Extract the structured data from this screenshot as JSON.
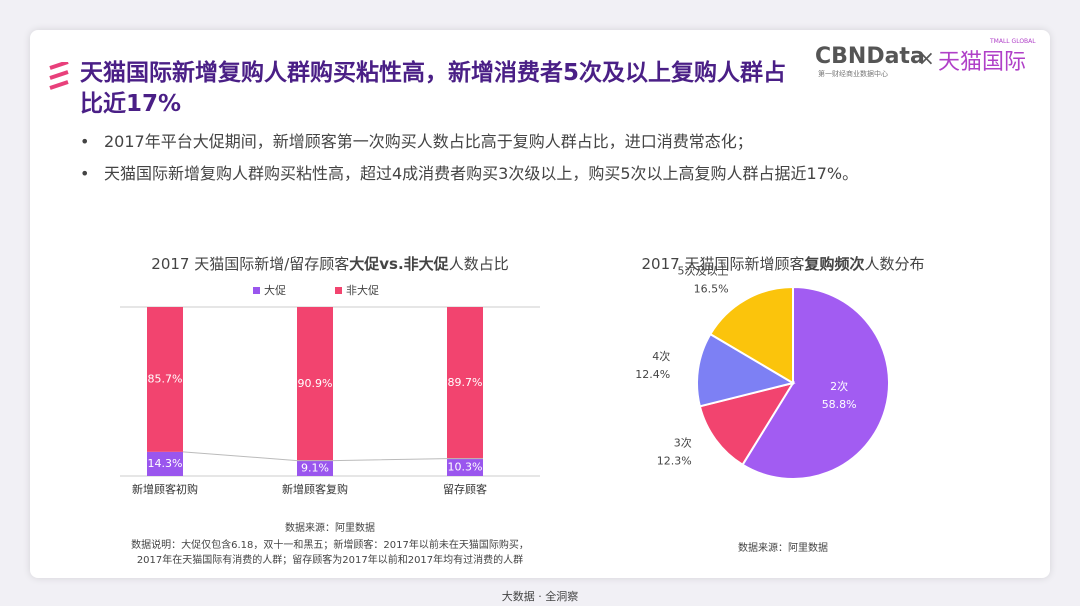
{
  "header": {
    "title": "天猫国际新增复购人群购买粘性高，新增消费者5次及以上复购人群占比近17%",
    "logo": "CBNData",
    "logo_sub": "第一财经商业数据中心",
    "cross": "×",
    "partner": "天猫国际",
    "partner_sub": "TMALL GLOBAL"
  },
  "bullets": [
    "2017年平台大促期间，新增顾客第一次购买人数占比高于复购人群占比，进口消费常态化；",
    "天猫国际新增复购人群购买粘性高，超过4成消费者购买3次级以上，购买5次以上高复购人群占据近17%。"
  ],
  "chart_data": [
    {
      "type": "bar",
      "stacked": true,
      "title": [
        "2017 天猫国际新增/留存顾客",
        "大促vs.非大促",
        "人数占比"
      ],
      "categories": [
        "新增顾客初购",
        "新增顾客复购",
        "留存顾客"
      ],
      "series": [
        {
          "name": "大促",
          "color": "#9a56ee",
          "values": [
            14.3,
            9.1,
            10.3
          ],
          "value_labels": [
            "14.3%",
            "9.1%",
            "10.3%"
          ]
        },
        {
          "name": "非大促",
          "color": "#f2446f",
          "values": [
            85.7,
            90.9,
            89.7
          ],
          "value_labels": [
            "85.7%",
            "90.9%",
            "89.7%"
          ]
        }
      ],
      "ylim": [
        0,
        100
      ],
      "legend": "top",
      "source": "数据来源：阿里数据",
      "note": [
        "数据说明：大促仅包含6.18，双十一和黑五；新增顾客：2017年以前未在天猫国际购买，",
        "2017年在天猫国际有消费的人群；留存顾客为2017年以前和2017年均有过消费的人群"
      ]
    },
    {
      "type": "pie",
      "title": [
        "2017 天猫国际新增顾客",
        "复购频次",
        "人数分布"
      ],
      "categories": [
        "2次",
        "3次",
        "4次",
        "5次及以上"
      ],
      "values": [
        58.8,
        12.3,
        12.4,
        16.5
      ],
      "value_labels": [
        "58.8%",
        "12.3%",
        "12.4%",
        "16.5%"
      ],
      "colors": [
        "#a25cf2",
        "#f2446f",
        "#7d80f4",
        "#fbc40c"
      ],
      "source": "数据来源：阿里数据"
    }
  ],
  "footer": "大数据 · 全洞察"
}
